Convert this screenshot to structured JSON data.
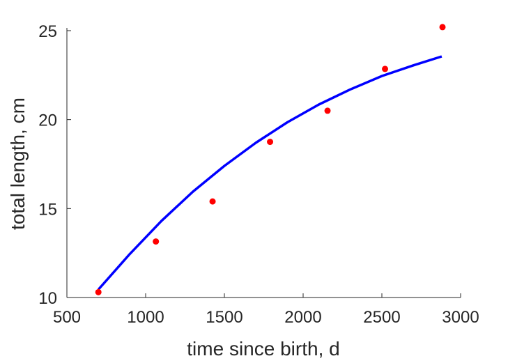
{
  "chart_data": {
    "type": "scatter",
    "title": "",
    "xlabel": "time since birth, d",
    "ylabel": "total length, cm",
    "xlim": [
      500,
      3000
    ],
    "ylim": [
      10,
      25
    ],
    "x_ticks": [
      500,
      1000,
      1500,
      2000,
      2500,
      3000
    ],
    "y_ticks": [
      10,
      15,
      20,
      25
    ],
    "grid": false,
    "legend": "none",
    "series": [
      {
        "kind": "scatter",
        "color": "#ff0000",
        "points": [
          [
            700,
            10.3
          ],
          [
            1065,
            13.15
          ],
          [
            1425,
            15.4
          ],
          [
            1790,
            18.75
          ],
          [
            2155,
            20.5
          ],
          [
            2520,
            22.85
          ],
          [
            2885,
            25.2
          ]
        ]
      },
      {
        "kind": "line",
        "color": "#0000ff",
        "points": [
          [
            700,
            10.45
          ],
          [
            900,
            12.45
          ],
          [
            1100,
            14.3
          ],
          [
            1300,
            15.95
          ],
          [
            1500,
            17.4
          ],
          [
            1700,
            18.7
          ],
          [
            1900,
            19.85
          ],
          [
            2100,
            20.85
          ],
          [
            2300,
            21.7
          ],
          [
            2500,
            22.45
          ],
          [
            2700,
            23.05
          ],
          [
            2880,
            23.55
          ]
        ]
      }
    ]
  }
}
